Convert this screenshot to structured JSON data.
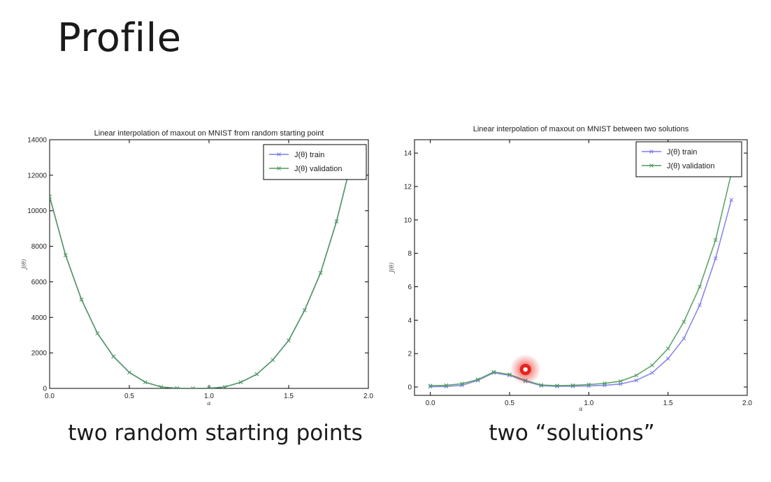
{
  "slide": {
    "title": "Profile",
    "captions": {
      "left": "two random starting points",
      "right": "two “solutions”"
    }
  },
  "colors": {
    "train": "#7b7be8",
    "validation": "#4f9a5a",
    "highlight": "#e8221c"
  },
  "chart_data": [
    {
      "type": "line",
      "title": "Linear interpolation of maxout on MNIST from random starting point",
      "xlabel": "α",
      "ylabel": "J(θ)",
      "xlim": [
        0.0,
        2.0
      ],
      "ylim": [
        0,
        14000
      ],
      "xticks": [
        "0.0",
        "0.5",
        "1.0",
        "1.5",
        "2.0"
      ],
      "yticks": [
        "0",
        "2000",
        "4000",
        "6000",
        "8000",
        "10000",
        "12000",
        "14000"
      ],
      "legend_position": "top-right",
      "grid": false,
      "series": [
        {
          "name": "J(θ) train",
          "color": "#7b7be8",
          "x": [
            0.0,
            0.1,
            0.2,
            0.3,
            0.4,
            0.5,
            0.6,
            0.7,
            0.8,
            0.9,
            1.0,
            1.1,
            1.2,
            1.3,
            1.4,
            1.5,
            1.6,
            1.7,
            1.8,
            1.9
          ],
          "y": [
            10800,
            7500,
            5000,
            3100,
            1800,
            900,
            350,
            80,
            10,
            0,
            10,
            80,
            350,
            800,
            1600,
            2700,
            4400,
            6500,
            9400,
            13000
          ]
        },
        {
          "name": "J(θ) validation",
          "color": "#4f9a5a",
          "x": [
            0.0,
            0.1,
            0.2,
            0.3,
            0.4,
            0.5,
            0.6,
            0.7,
            0.8,
            0.9,
            1.0,
            1.1,
            1.2,
            1.3,
            1.4,
            1.5,
            1.6,
            1.7,
            1.8,
            1.9
          ],
          "y": [
            10800,
            7500,
            5000,
            3100,
            1800,
            900,
            350,
            80,
            10,
            0,
            10,
            80,
            350,
            800,
            1600,
            2700,
            4400,
            6500,
            9400,
            13000
          ]
        }
      ]
    },
    {
      "type": "line",
      "title": "Linear interpolation of maxout on MNIST between two solutions",
      "xlabel": "α",
      "ylabel": "J(θ)",
      "xlim": [
        -0.1,
        2.0
      ],
      "ylim": [
        -0.5,
        14.8
      ],
      "xticks": [
        "0.0",
        "0.5",
        "1.0",
        "1.5",
        "2.0"
      ],
      "yticks": [
        "0",
        "2",
        "4",
        "6",
        "8",
        "10",
        "12",
        "14"
      ],
      "legend_position": "top-right",
      "grid": false,
      "annotation": {
        "type": "highlight-dot",
        "x": 0.6,
        "y": 1.05
      },
      "series": [
        {
          "name": "J(θ) train",
          "color": "#7b7be8",
          "x": [
            0.0,
            0.1,
            0.2,
            0.3,
            0.4,
            0.5,
            0.6,
            0.7,
            0.8,
            0.9,
            1.0,
            1.1,
            1.2,
            1.3,
            1.4,
            1.5,
            1.6,
            1.7,
            1.8,
            1.9
          ],
          "y": [
            0.02,
            0.03,
            0.1,
            0.4,
            0.85,
            0.7,
            0.35,
            0.08,
            0.04,
            0.05,
            0.07,
            0.1,
            0.18,
            0.4,
            0.85,
            1.7,
            2.9,
            4.9,
            7.7,
            11.2
          ]
        },
        {
          "name": "J(θ) validation",
          "color": "#4f9a5a",
          "x": [
            0.0,
            0.1,
            0.2,
            0.3,
            0.4,
            0.5,
            0.6,
            0.7,
            0.8,
            0.9,
            1.0,
            1.1,
            1.2,
            1.3,
            1.4,
            1.5,
            1.6,
            1.7,
            1.8,
            1.9
          ],
          "y": [
            0.08,
            0.1,
            0.2,
            0.45,
            0.9,
            0.75,
            0.4,
            0.12,
            0.08,
            0.1,
            0.15,
            0.22,
            0.35,
            0.7,
            1.3,
            2.3,
            3.9,
            6.0,
            8.8,
            12.8
          ]
        }
      ]
    }
  ]
}
